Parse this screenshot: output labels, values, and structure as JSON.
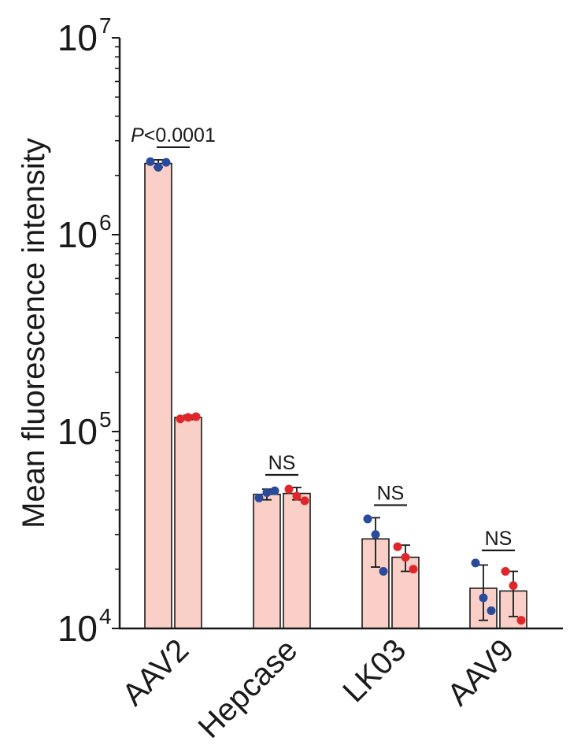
{
  "chart_data": {
    "type": "bar",
    "ylabel": "Mean fluorescence intensity",
    "yscale": "log",
    "ylim": [
      10000,
      10000000
    ],
    "yticks": [
      {
        "base": "10",
        "exp": "4",
        "value": 10000
      },
      {
        "base": "10",
        "exp": "5",
        "value": 100000
      },
      {
        "base": "10",
        "exp": "6",
        "value": 1000000
      },
      {
        "base": "10",
        "exp": "7",
        "value": 10000000
      }
    ],
    "categories": [
      "AAV2",
      "Hepcase",
      "LK03",
      "AAV9"
    ],
    "series": [
      {
        "color": "#2a4a9c",
        "values": [
          2300000,
          48000,
          28500,
          16000
        ],
        "errors": [
          100000,
          3000,
          8000,
          5000
        ],
        "points": [
          [
            2350000,
            2200000,
            2330000
          ],
          [
            46000,
            49000,
            50000
          ],
          [
            36000,
            30000,
            19500
          ],
          [
            21500,
            14300,
            12300
          ]
        ]
      },
      {
        "color": "#e0262a",
        "values": [
          118000,
          48500,
          23000,
          15500
        ],
        "errors": [
          3000,
          3500,
          3500,
          4000
        ],
        "points": [
          [
            116000,
            118000,
            119000
          ],
          [
            51000,
            47000,
            44500
          ],
          [
            26000,
            23000,
            20000
          ],
          [
            19500,
            16500,
            11000
          ]
        ]
      }
    ],
    "bar_fill": "#f9cfc8",
    "annotations": [
      {
        "category": "AAV2",
        "label_italic": "P",
        "label_rest": "<0.0001"
      },
      {
        "category": "Hepcase",
        "label_italic": "",
        "label_rest": "NS"
      },
      {
        "category": "LK03",
        "label_italic": "",
        "label_rest": "NS"
      },
      {
        "category": "AAV9",
        "label_italic": "",
        "label_rest": "NS"
      }
    ]
  }
}
